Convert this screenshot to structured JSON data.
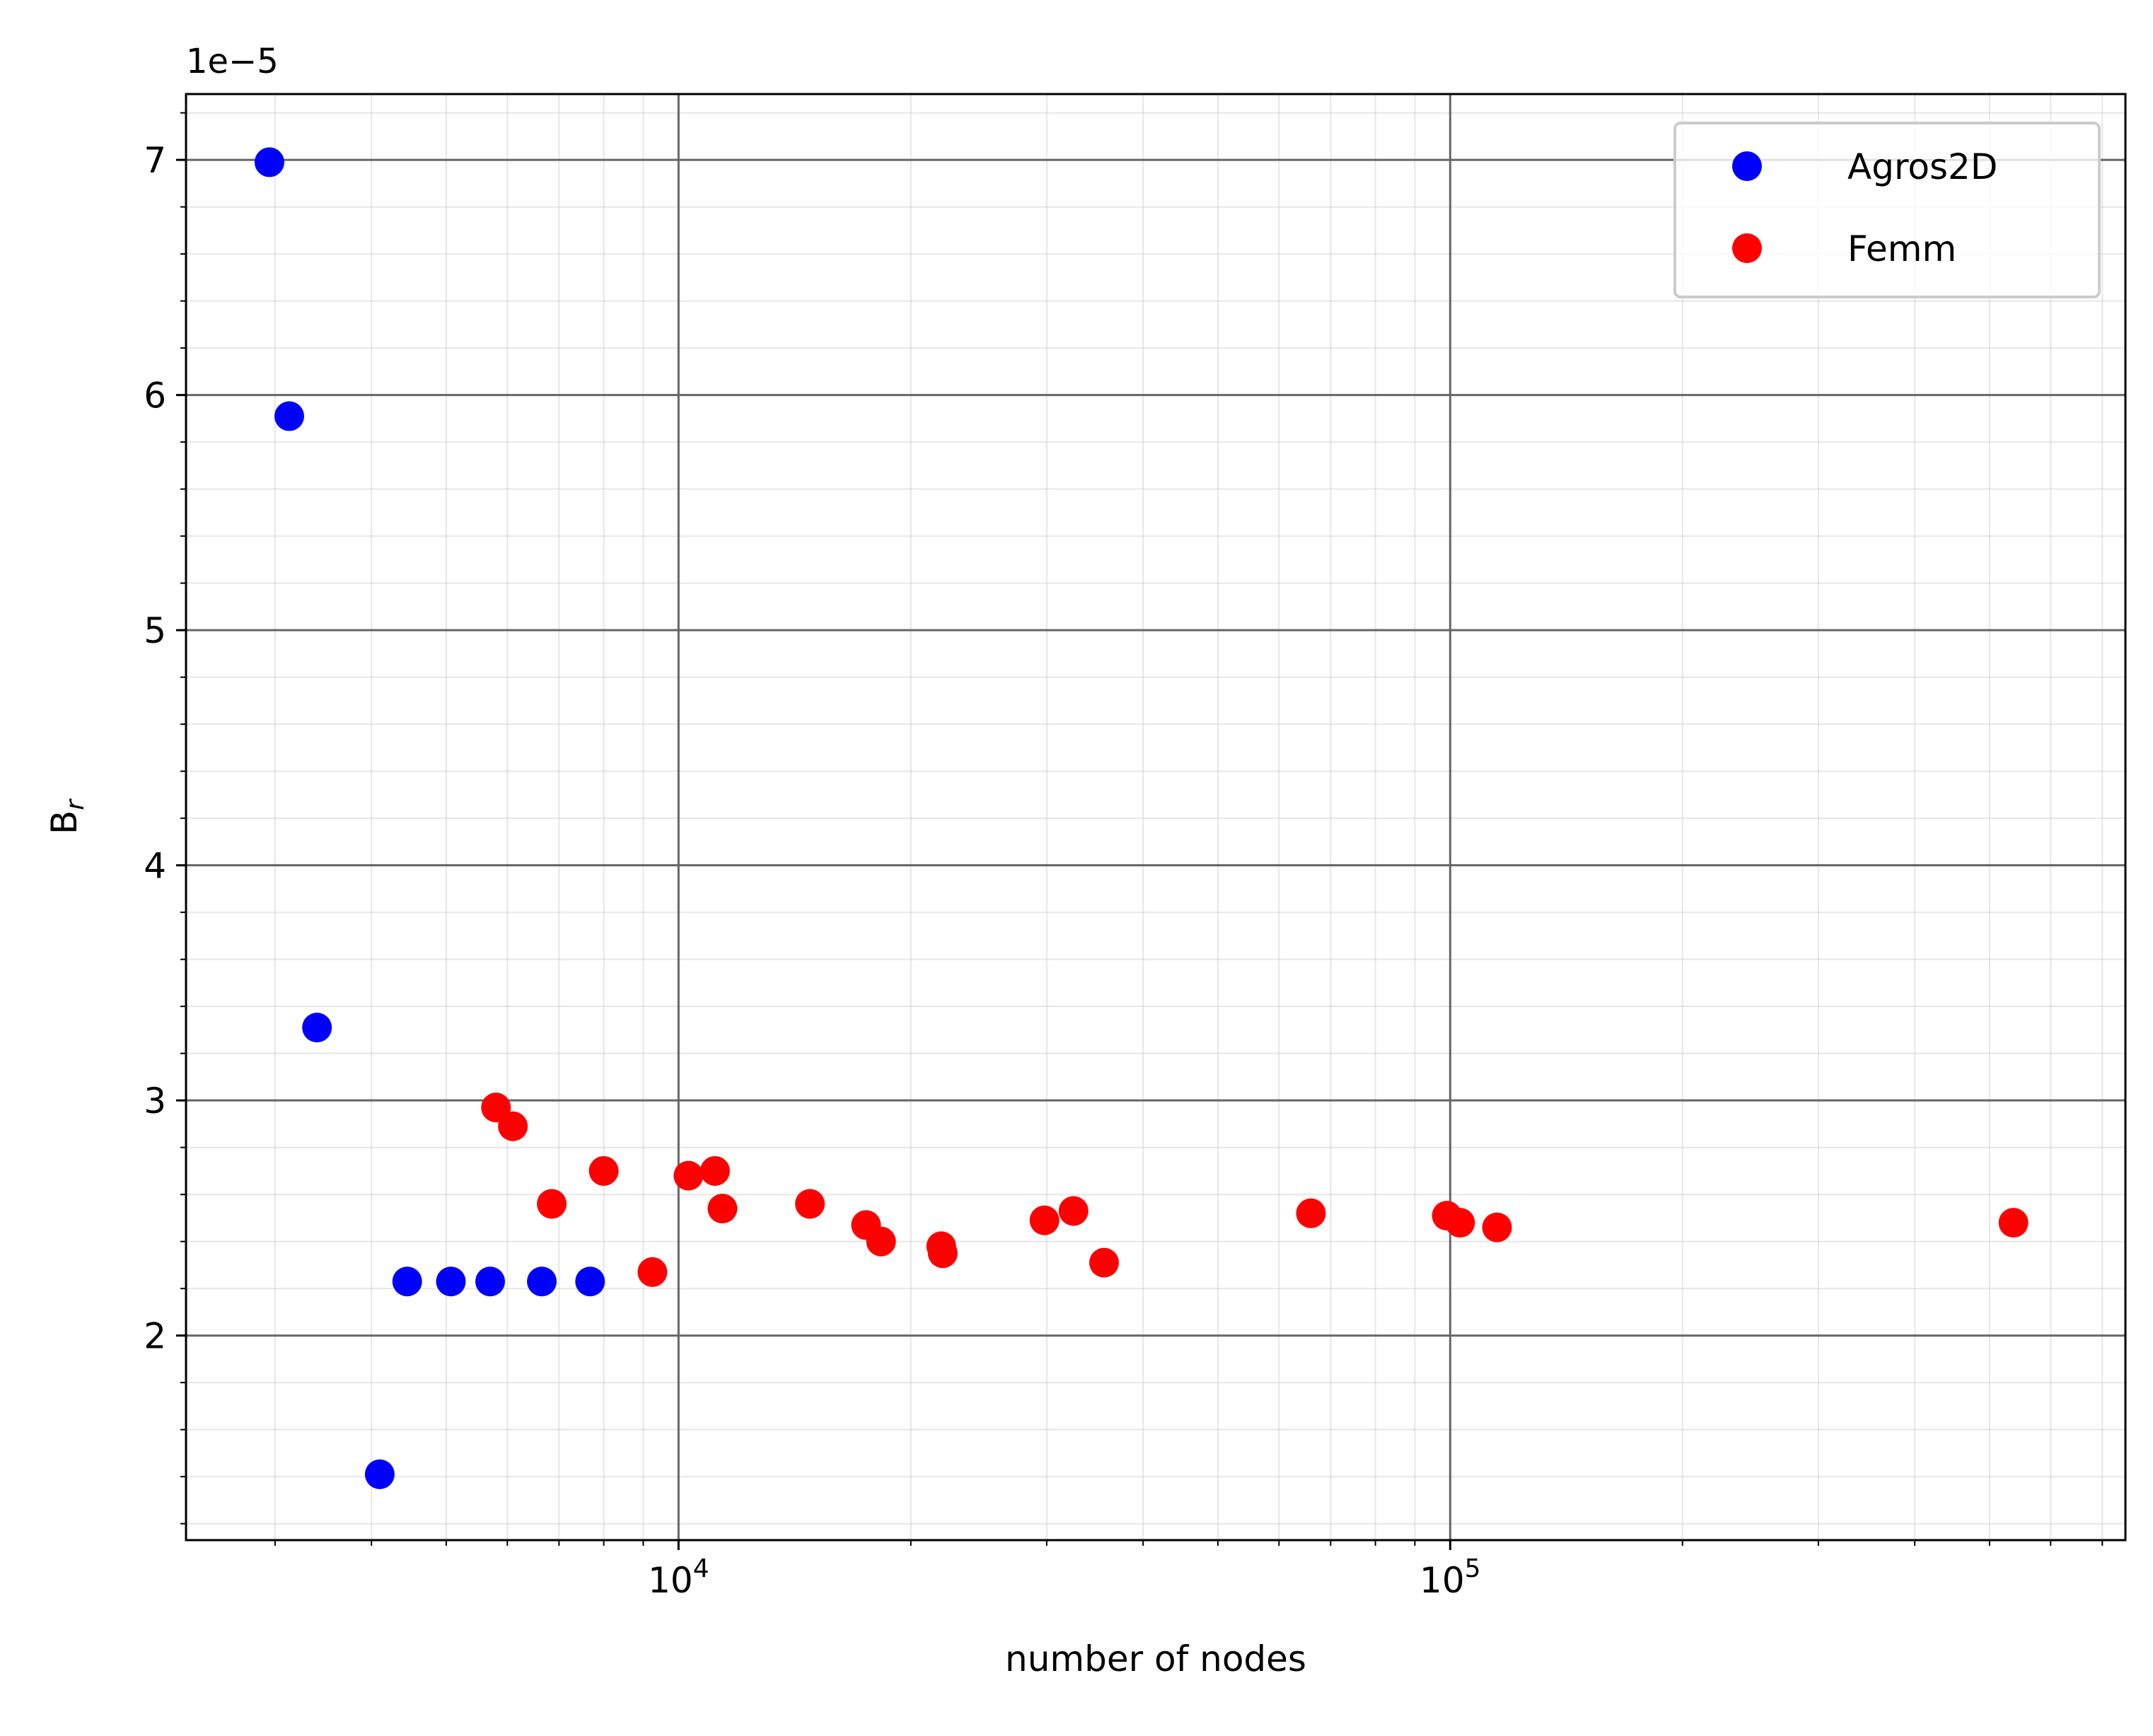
{
  "chart_data": {
    "type": "scatter",
    "title": "",
    "xlabel": "number of nodes",
    "ylabel_base": "B",
    "ylabel_sub": "r",
    "offset_label": "1e−5",
    "x_scale": "log",
    "xlim": [
      2300,
      750000
    ],
    "ylim": [
      1.13,
      7.28
    ],
    "x_major_ticks": [
      {
        "value": 10000,
        "base": "10",
        "exp": "4"
      },
      {
        "value": 100000,
        "base": "10",
        "exp": "5"
      }
    ],
    "y_major_ticks": [
      {
        "value": 2,
        "label": "2"
      },
      {
        "value": 3,
        "label": "3"
      },
      {
        "value": 4,
        "label": "4"
      },
      {
        "value": 5,
        "label": "5"
      },
      {
        "value": 6,
        "label": "6"
      },
      {
        "value": 7,
        "label": "7"
      }
    ],
    "grid": "major and minor",
    "legend_position": "upper right",
    "series": [
      {
        "name": "Agros2D",
        "color": "#0000ff",
        "points": [
          {
            "x": 2950,
            "y": 6.99
          },
          {
            "x": 3130,
            "y": 5.91
          },
          {
            "x": 3400,
            "y": 3.31
          },
          {
            "x": 4100,
            "y": 1.41
          },
          {
            "x": 4450,
            "y": 2.23
          },
          {
            "x": 5070,
            "y": 2.23
          },
          {
            "x": 5700,
            "y": 2.23
          },
          {
            "x": 6650,
            "y": 2.23
          },
          {
            "x": 7680,
            "y": 2.23
          }
        ]
      },
      {
        "name": "Femm",
        "color": "#ff0000",
        "points": [
          {
            "x": 5800,
            "y": 2.97
          },
          {
            "x": 6100,
            "y": 2.89
          },
          {
            "x": 6850,
            "y": 2.56
          },
          {
            "x": 8000,
            "y": 2.7
          },
          {
            "x": 9250,
            "y": 2.27
          },
          {
            "x": 10300,
            "y": 2.68
          },
          {
            "x": 11150,
            "y": 2.7
          },
          {
            "x": 11400,
            "y": 2.54
          },
          {
            "x": 14800,
            "y": 2.56
          },
          {
            "x": 17500,
            "y": 2.47
          },
          {
            "x": 18300,
            "y": 2.4
          },
          {
            "x": 21900,
            "y": 2.38
          },
          {
            "x": 22000,
            "y": 2.35
          },
          {
            "x": 29800,
            "y": 2.49
          },
          {
            "x": 32500,
            "y": 2.53
          },
          {
            "x": 35600,
            "y": 2.31
          },
          {
            "x": 66000,
            "y": 2.52
          },
          {
            "x": 99000,
            "y": 2.51
          },
          {
            "x": 103000,
            "y": 2.48
          },
          {
            "x": 115000,
            "y": 2.46
          },
          {
            "x": 537000,
            "y": 2.48
          }
        ]
      }
    ]
  }
}
